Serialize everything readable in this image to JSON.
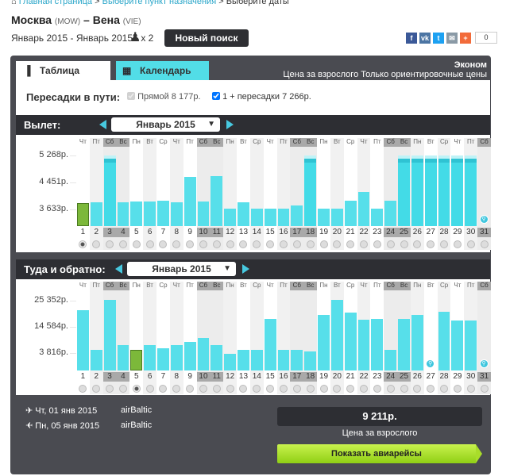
{
  "breadcrumb": [
    "Главная страница",
    "Выберите пункт назначения",
    "Выберите даты"
  ],
  "route": {
    "from": "Москва",
    "from_code": "(MOW)",
    "dash": "–",
    "to": "Вена",
    "to_code": "(VIE)"
  },
  "date_range": "Январь 2015 - Январь 2015",
  "passengers": "x 2",
  "new_search": "Новый поиск",
  "share": {
    "count": "0",
    "buttons": [
      {
        "icon": "facebook-icon",
        "glyph": "f",
        "color": "#3b5998"
      },
      {
        "icon": "vk-icon",
        "glyph": "vk",
        "color": "#4c75a3"
      },
      {
        "icon": "twitter-icon",
        "glyph": "t",
        "color": "#1da1f2"
      },
      {
        "icon": "email-icon",
        "glyph": "✉",
        "color": "#8a9aa6"
      },
      {
        "icon": "plus-icon",
        "glyph": "+",
        "color": "#f26b3a"
      }
    ]
  },
  "tabs": {
    "table": "Таблица",
    "calendar": "Календарь"
  },
  "class_label": "Эконом",
  "price_note": "Цена за взрослого Только ориентировочные цены",
  "transfers": {
    "label": "Пересадки в пути:",
    "direct": "Прямой 8 177р.",
    "with_transfers": "1 + пересадки 7 266р.",
    "direct_checked": true,
    "transfers_checked": true
  },
  "colors": {
    "bar": "#57dfea",
    "selected": "#7cb83a",
    "header": "#2d2e33",
    "panel": "#4a4b51",
    "accent": "#47c9e0"
  },
  "chart_data": [
    {
      "type": "bar",
      "title": "Вылет:",
      "month": "Январь 2015",
      "categories": [
        "1",
        "2",
        "3",
        "4",
        "5",
        "6",
        "7",
        "8",
        "9",
        "10",
        "11",
        "12",
        "13",
        "14",
        "15",
        "16",
        "17",
        "18",
        "19",
        "20",
        "21",
        "22",
        "23",
        "24",
        "25",
        "26",
        "27",
        "28",
        "29",
        "30",
        "31"
      ],
      "weekdays": [
        "Чт",
        "Пт",
        "Сб",
        "Вс",
        "Пн",
        "Вт",
        "Ср",
        "Чт",
        "Пт",
        "Сб",
        "Вс",
        "Пн",
        "Вт",
        "Ср",
        "Чт",
        "Пт",
        "Сб",
        "Вс",
        "Пн",
        "Вт",
        "Ср",
        "Чт",
        "Пт",
        "Сб",
        "Вс",
        "Пн",
        "Вт",
        "Ср",
        "Чт",
        "Пт",
        "Сб"
      ],
      "values": [
        3825,
        3850,
        null,
        3850,
        3875,
        3875,
        3900,
        3850,
        4620,
        3875,
        4640,
        3660,
        3850,
        3660,
        3660,
        3660,
        3750,
        null,
        3660,
        3660,
        3900,
        4160,
        3660,
        3900,
        null,
        null,
        null,
        null,
        null,
        null,
        null
      ],
      "above_range_days": [
        "3",
        "18",
        "25",
        "26",
        "27",
        "28",
        "29",
        "30"
      ],
      "no_data_days": [
        "31"
      ],
      "y_ticks": [
        "5 268р.",
        "4 451р.",
        "3 633р."
      ],
      "y_tick_values": [
        5268,
        4451,
        3633
      ],
      "selected_day": "1",
      "grid": true
    },
    {
      "type": "bar",
      "title": "Туда и обратно:",
      "month": "Январь 2015",
      "categories": [
        "1",
        "2",
        "3",
        "4",
        "5",
        "6",
        "7",
        "8",
        "9",
        "10",
        "11",
        "12",
        "13",
        "14",
        "15",
        "16",
        "17",
        "18",
        "19",
        "20",
        "21",
        "22",
        "23",
        "24",
        "25",
        "26",
        "27",
        "28",
        "29",
        "30",
        "31"
      ],
      "weekdays": [
        "Чт",
        "Пт",
        "Сб",
        "Вс",
        "Пн",
        "Вт",
        "Ср",
        "Чт",
        "Пт",
        "Сб",
        "Вс",
        "Пн",
        "Вт",
        "Ср",
        "Чт",
        "Пт",
        "Сб",
        "Вс",
        "Пн",
        "Вт",
        "Ср",
        "Чт",
        "Пт",
        "Сб",
        "Вс",
        "Пн",
        "Вт",
        "Ср",
        "Чт",
        "Пт",
        "Сб"
      ],
      "values": [
        21400,
        5100,
        25700,
        7100,
        5100,
        7100,
        5800,
        7100,
        8400,
        10000,
        7100,
        3500,
        5100,
        5100,
        17800,
        5100,
        5100,
        4500,
        19500,
        25700,
        20400,
        17500,
        17800,
        5100,
        17800,
        19500,
        null,
        20800,
        17200,
        17200,
        null
      ],
      "no_data_days": [
        "27",
        "31"
      ],
      "y_ticks": [
        "25 352р.",
        "14 584р.",
        "3 816р."
      ],
      "y_tick_values": [
        25352,
        14584,
        3816
      ],
      "selected_day": "5",
      "grid": true
    }
  ],
  "summary": {
    "outbound": {
      "date": "Чт, 01 янв 2015",
      "airline": "airBaltic"
    },
    "return": {
      "date": "Пн, 05 янв 2015",
      "airline": "airBaltic"
    },
    "price": "9 211р.",
    "price_label": "Цена за взрослого",
    "show_flights": "Показать авиарейсы"
  }
}
